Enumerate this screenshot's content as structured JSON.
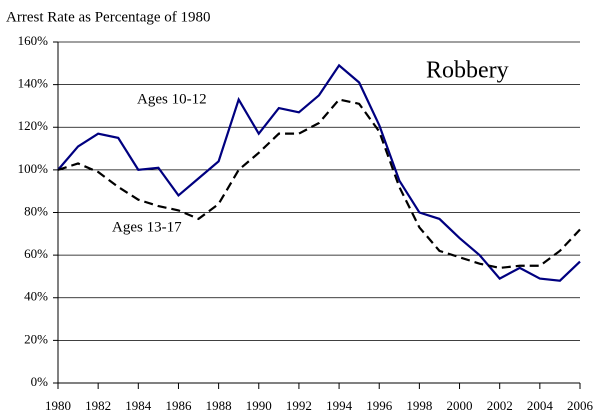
{
  "chart_data": {
    "type": "line",
    "title": "Arrest Rate as Percentage of 1980",
    "annotation": "Robbery",
    "x": [
      1980,
      1981,
      1982,
      1983,
      1984,
      1985,
      1986,
      1987,
      1988,
      1989,
      1990,
      1991,
      1992,
      1993,
      1994,
      1995,
      1996,
      1997,
      1998,
      1999,
      2000,
      2001,
      2002,
      2003,
      2004,
      2005,
      2006
    ],
    "series": [
      {
        "name": "Ages 10-12",
        "color": "#000080",
        "dashed": false,
        "values": [
          100,
          111,
          117,
          115,
          100,
          101,
          88,
          96,
          104,
          133,
          117,
          129,
          127,
          135,
          149,
          141,
          121,
          95,
          80,
          77,
          68,
          60,
          49,
          54,
          49,
          48,
          57
        ]
      },
      {
        "name": "Ages 13-17",
        "color": "#000000",
        "dashed": true,
        "values": [
          100,
          103,
          99,
          92,
          86,
          83,
          81,
          77,
          84,
          100,
          108,
          117,
          117,
          122,
          133,
          131,
          118,
          92,
          73,
          62,
          59,
          56,
          54,
          55,
          55,
          62,
          72
        ]
      }
    ],
    "xlim": [
      1980,
      2006
    ],
    "xticks": [
      1980,
      1982,
      1984,
      1986,
      1988,
      1990,
      1992,
      1994,
      1996,
      1998,
      2000,
      2002,
      2004,
      2006
    ],
    "ylim": [
      0,
      160
    ],
    "yticks": [
      {
        "value": 0,
        "label": "0%"
      },
      {
        "value": 20,
        "label": "20%"
      },
      {
        "value": 40,
        "label": "40%"
      },
      {
        "value": 60,
        "label": "60%"
      },
      {
        "value": 80,
        "label": "80%"
      },
      {
        "value": 100,
        "label": "100%"
      },
      {
        "value": 120,
        "label": "120%"
      },
      {
        "value": 140,
        "label": "140%"
      },
      {
        "value": 160,
        "label": "160%"
      }
    ],
    "grid": true
  }
}
